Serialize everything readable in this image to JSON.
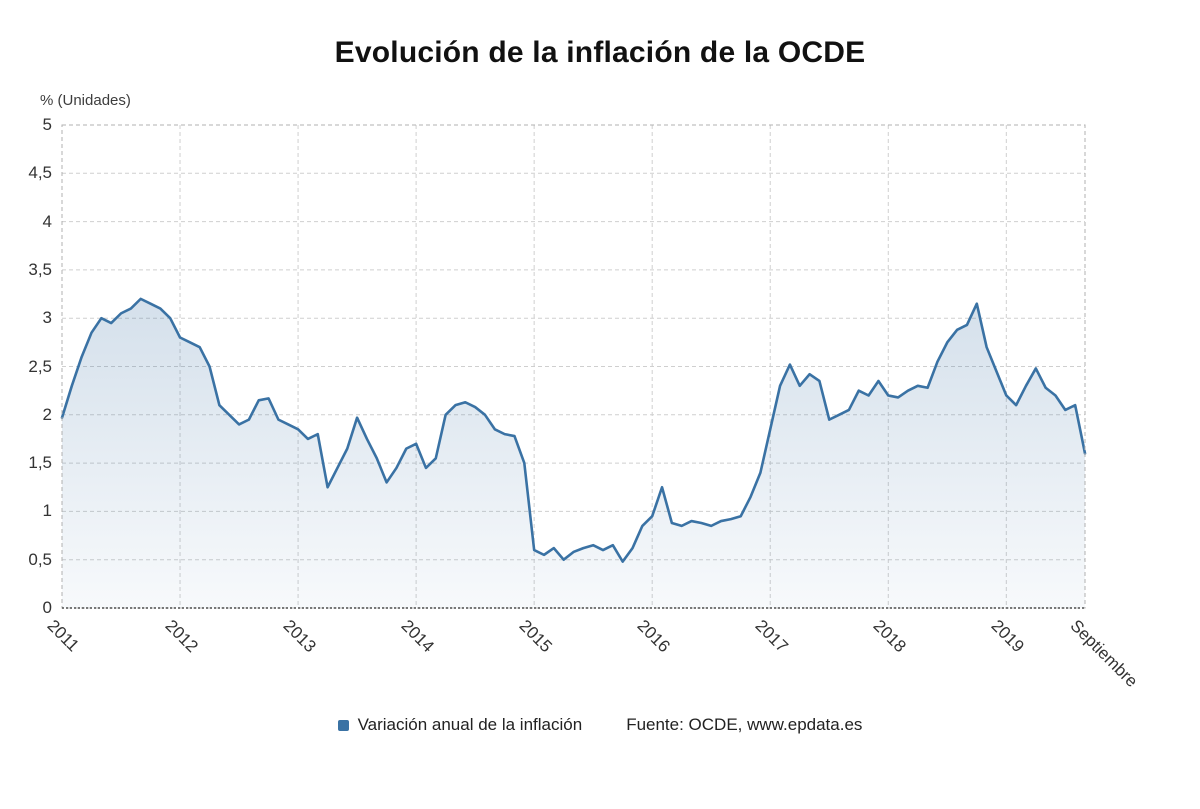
{
  "title": "Evolución de la inflación de la OCDE",
  "legend": {
    "series_label": "Variación anual de la inflación",
    "source": "Fuente: OCDE, www.epdata.es"
  },
  "colors": {
    "line": "#3a72a4",
    "area_top": "rgba(61,114,165,0.22)",
    "area_bottom": "rgba(61,114,165,0.04)",
    "grid": "#cfcfcf",
    "frame": "#b0b0b0",
    "axis": "#4d4d4d",
    "text": "#333333"
  },
  "chart_data": {
    "type": "area",
    "title": "Evolución de la inflación de la OCDE",
    "ylabel": "% (Unidades)",
    "xlabel": "",
    "series_name": "Variación anual de la inflación",
    "ylim": [
      0,
      5
    ],
    "y_tick_step": 0.5,
    "grid": "dashed",
    "legend_position": "bottom",
    "x_range": "Enero 2011 - Septiembre 2019 (mensual)",
    "x_ticks": [
      {
        "label": "2011",
        "month": 0
      },
      {
        "label": "2012",
        "month": 12
      },
      {
        "label": "2013",
        "month": 24
      },
      {
        "label": "2014",
        "month": 36
      },
      {
        "label": "2015",
        "month": 48
      },
      {
        "label": "2016",
        "month": 60
      },
      {
        "label": "2017",
        "month": 72
      },
      {
        "label": "2018",
        "month": 84
      },
      {
        "label": "2019",
        "month": 96
      },
      {
        "label": "Septiembre",
        "month": 104
      }
    ],
    "values": [
      1.97,
      2.3,
      2.6,
      2.85,
      3.0,
      2.95,
      3.05,
      3.1,
      3.2,
      3.15,
      3.1,
      3.0,
      2.8,
      2.75,
      2.7,
      2.5,
      2.1,
      2.0,
      1.9,
      1.95,
      2.15,
      2.17,
      1.95,
      1.9,
      1.85,
      1.75,
      1.8,
      1.25,
      1.45,
      1.65,
      1.97,
      1.75,
      1.55,
      1.3,
      1.45,
      1.65,
      1.7,
      1.45,
      1.55,
      2.0,
      2.1,
      2.13,
      2.08,
      2.0,
      1.85,
      1.8,
      1.78,
      1.5,
      0.6,
      0.55,
      0.62,
      0.5,
      0.58,
      0.62,
      0.65,
      0.6,
      0.65,
      0.48,
      0.62,
      0.85,
      0.95,
      1.25,
      0.88,
      0.85,
      0.9,
      0.88,
      0.85,
      0.9,
      0.92,
      0.95,
      1.15,
      1.4,
      1.85,
      2.3,
      2.52,
      2.3,
      2.42,
      2.35,
      1.95,
      2.0,
      2.05,
      2.25,
      2.2,
      2.35,
      2.2,
      2.18,
      2.25,
      2.3,
      2.28,
      2.55,
      2.75,
      2.88,
      2.93,
      3.15,
      2.7,
      2.45,
      2.2,
      2.1,
      2.3,
      2.48,
      2.28,
      2.2,
      2.05,
      2.1,
      1.6
    ]
  }
}
